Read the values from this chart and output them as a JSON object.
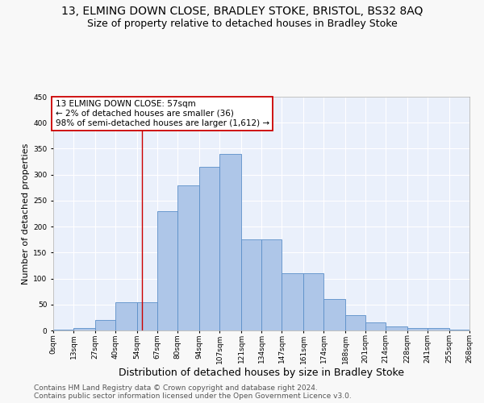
{
  "title": "13, ELMING DOWN CLOSE, BRADLEY STOKE, BRISTOL, BS32 8AQ",
  "subtitle": "Size of property relative to detached houses in Bradley Stoke",
  "xlabel": "Distribution of detached houses by size in Bradley Stoke",
  "ylabel": "Number of detached properties",
  "footer1": "Contains HM Land Registry data © Crown copyright and database right 2024.",
  "footer2": "Contains public sector information licensed under the Open Government Licence v3.0.",
  "bin_edges": [
    0,
    13,
    27,
    40,
    54,
    67,
    80,
    94,
    107,
    121,
    134,
    147,
    161,
    174,
    188,
    201,
    214,
    228,
    241,
    255,
    268
  ],
  "bar_heights": [
    2,
    5,
    20,
    55,
    55,
    230,
    280,
    315,
    340,
    175,
    175,
    110,
    110,
    60,
    30,
    15,
    7,
    5,
    5,
    2
  ],
  "bar_color": "#aec6e8",
  "bar_edge_color": "#5b8fc9",
  "background_color": "#eaf0fb",
  "grid_color": "#ffffff",
  "vline_x": 57,
  "vline_color": "#cc0000",
  "annotation_line1": "13 ELMING DOWN CLOSE: 57sqm",
  "annotation_line2": "← 2% of detached houses are smaller (36)",
  "annotation_line3": "98% of semi-detached houses are larger (1,612) →",
  "annotation_box_color": "#ffffff",
  "annotation_box_edge": "#cc0000",
  "annotation_fontsize": 7.5,
  "ylim": [
    0,
    450
  ],
  "yticks": [
    0,
    50,
    100,
    150,
    200,
    250,
    300,
    350,
    400,
    450
  ],
  "title_fontsize": 10,
  "subtitle_fontsize": 9,
  "xlabel_fontsize": 9,
  "ylabel_fontsize": 8,
  "footer_fontsize": 6.5,
  "tick_fontsize": 6.5
}
